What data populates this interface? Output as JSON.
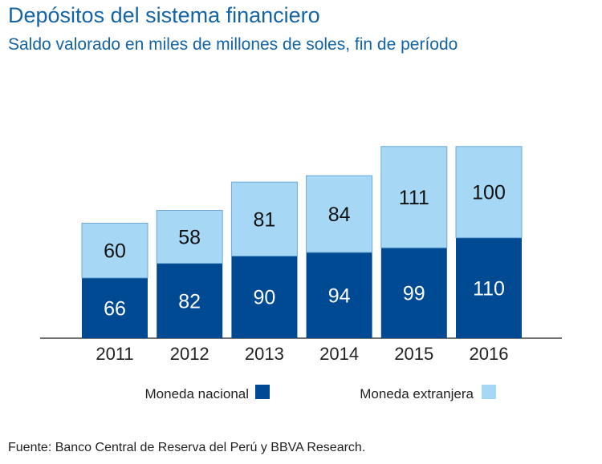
{
  "chart_data": {
    "type": "bar",
    "stacked": true,
    "title": "Depósitos del sistema financiero",
    "subtitle": "Saldo valorado en miles de millones de soles, fin de período",
    "categories": [
      "2011",
      "2012",
      "2013",
      "2014",
      "2015",
      "2016"
    ],
    "series": [
      {
        "name": "Moneda nacional",
        "color": "#004a94",
        "values": [
          66,
          82,
          90,
          94,
          99,
          110
        ]
      },
      {
        "name": "Moneda extranjera",
        "color": "#a6d8f5",
        "values": [
          60,
          58,
          81,
          84,
          111,
          100
        ]
      }
    ],
    "ylim": [
      0,
      230
    ],
    "grid": false,
    "legend": "bottom",
    "source": "Fuente: Banco Central de Reserva del Perú y BBVA Research."
  }
}
